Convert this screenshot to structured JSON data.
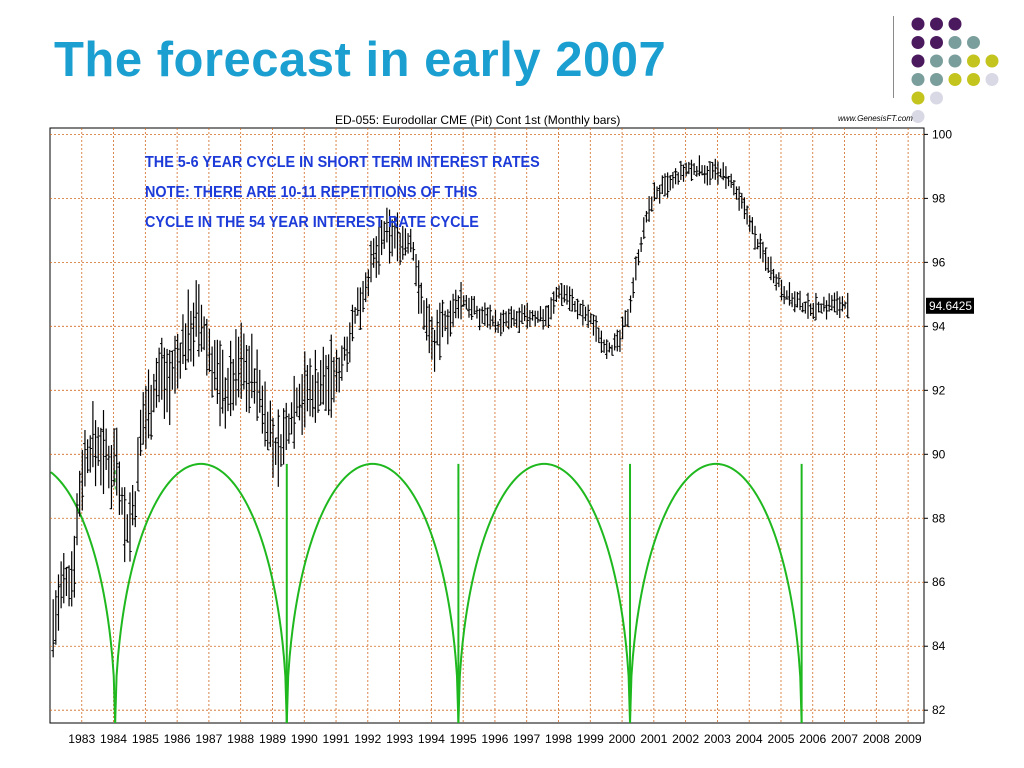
{
  "slide": {
    "title": "The forecast in early 2007"
  },
  "decoration": {
    "dot_rows": [
      [
        "#4b1a5e",
        "#4b1a5e",
        "#4b1a5e"
      ],
      [
        "#4b1a5e",
        "#4b1a5e",
        "#7a9e9c",
        "#7a9e9c"
      ],
      [
        "#4b1a5e",
        "#7a9e9c",
        "#7a9e9c",
        "#c4c41e",
        "#c4c41e"
      ],
      [
        "#7a9e9c",
        "#7a9e9c",
        "#c4c41e",
        "#c4c41e",
        "#d9d9e6"
      ],
      [
        "#c4c41e",
        "#d9d9e6"
      ],
      [
        "#d9d9e6"
      ],
      [
        "#d9d9e6"
      ]
    ]
  },
  "chart": {
    "header": "ED-055:  Eurodollar CME (Pit) Cont 1st  (Monthly bars)",
    "watermark": "www.GenesisFT.com",
    "annotation_lines": [
      "THE 5-6 YEAR CYCLE IN SHORT TERM INTEREST RATES",
      "NOTE: THERE ARE 10-11 REPETITIONS OF THIS",
      "CYCLE IN THE 54 YEAR INTEREST RATE CYCLE"
    ],
    "last_price_label": "94.6425",
    "colors": {
      "grid": "#d2691e",
      "price": "#000000",
      "cycle": "#1fb81f",
      "annotation": "#1d3bd8",
      "title": "#1a9fd0"
    }
  },
  "chart_data": {
    "type": "line",
    "title": "ED-055:  Eurodollar CME (Pit) Cont 1st  (Monthly bars)",
    "x_tick_labels": [
      "1983",
      "1984",
      "1985",
      "1986",
      "1987",
      "1988",
      "1989",
      "1990",
      "1991",
      "1992",
      "1993",
      "1994",
      "1995",
      "1996",
      "1997",
      "1998",
      "1999",
      "2000",
      "2001",
      "2002",
      "2003",
      "2004",
      "2005",
      "2006",
      "2007",
      "2008",
      "2009"
    ],
    "y_tick_labels": [
      "100",
      "98",
      "96",
      "94",
      "92",
      "90",
      "88",
      "86",
      "84",
      "82"
    ],
    "xlim": [
      1982.0,
      2009.5
    ],
    "ylim": [
      81.6,
      100.2
    ],
    "grid": true,
    "y_axis_position": "right",
    "series": [
      {
        "kind": "monthly price bars (approximate path)",
        "x": [
          1982.1,
          1982.4,
          1982.7,
          1983.0,
          1983.3,
          1983.6,
          1983.9,
          1984.1,
          1984.4,
          1984.7,
          1984.9,
          1985.2,
          1985.5,
          1985.8,
          1986.1,
          1986.4,
          1986.6,
          1986.9,
          1987.2,
          1987.5,
          1987.8,
          1988.0,
          1988.4,
          1988.8,
          1989.1,
          1989.4,
          1989.7,
          1990.0,
          1990.4,
          1990.7,
          1991.0,
          1991.3,
          1991.6,
          1991.9,
          1992.2,
          1992.5,
          1992.8,
          1993.1,
          1993.4,
          1993.7,
          1993.9,
          1994.1,
          1994.4,
          1994.7,
          1994.9,
          1995.2,
          1995.5,
          1995.8,
          1996.1,
          1996.4,
          1996.7,
          1997.0,
          1997.4,
          1997.7,
          1998.0,
          1998.3,
          1998.6,
          1998.8,
          1999.1,
          1999.4,
          1999.7,
          1999.9,
          2000.2,
          2000.5,
          2000.8,
          2001.0,
          2001.3,
          2001.6,
          2001.9,
          2002.2,
          2002.5,
          2002.8,
          2003.1,
          2003.4,
          2003.7,
          2004.0,
          2004.2,
          2004.5,
          2004.8,
          2005.1,
          2005.4,
          2005.7,
          2006.0,
          2006.3,
          2006.6,
          2006.9,
          2007.1
        ],
        "y": [
          84.6,
          85.8,
          86.2,
          89.5,
          90.3,
          90.2,
          89.6,
          90.0,
          87.5,
          88.5,
          91.0,
          91.8,
          92.6,
          92.3,
          93.1,
          93.9,
          94.2,
          93.5,
          92.6,
          91.9,
          92.4,
          92.9,
          92.4,
          91.2,
          90.0,
          90.5,
          91.6,
          91.9,
          92.1,
          92.3,
          92.4,
          93.3,
          94.3,
          95.2,
          96.1,
          96.8,
          96.9,
          96.6,
          96.6,
          94.6,
          94.1,
          93.4,
          94.2,
          94.3,
          94.8,
          94.7,
          94.3,
          94.4,
          94.0,
          94.2,
          94.2,
          94.3,
          94.3,
          94.4,
          95.1,
          95.0,
          94.5,
          94.4,
          94.1,
          93.5,
          93.3,
          93.5,
          94.4,
          96.2,
          97.5,
          98.1,
          98.3,
          98.5,
          98.8,
          98.9,
          98.9,
          98.8,
          98.8,
          98.5,
          97.9,
          97.4,
          96.7,
          96.2,
          95.6,
          95.1,
          94.8,
          94.6,
          94.6,
          94.6,
          94.7,
          94.7,
          94.64
        ],
        "last": 94.6425
      },
      {
        "kind": "5-6 year cycle arcs",
        "cycle_lows_x": [
          1984.05,
          1989.45,
          1994.85,
          2000.25,
          2005.65
        ],
        "arc_high": 89.7,
        "arc_low": 81.6
      }
    ]
  }
}
